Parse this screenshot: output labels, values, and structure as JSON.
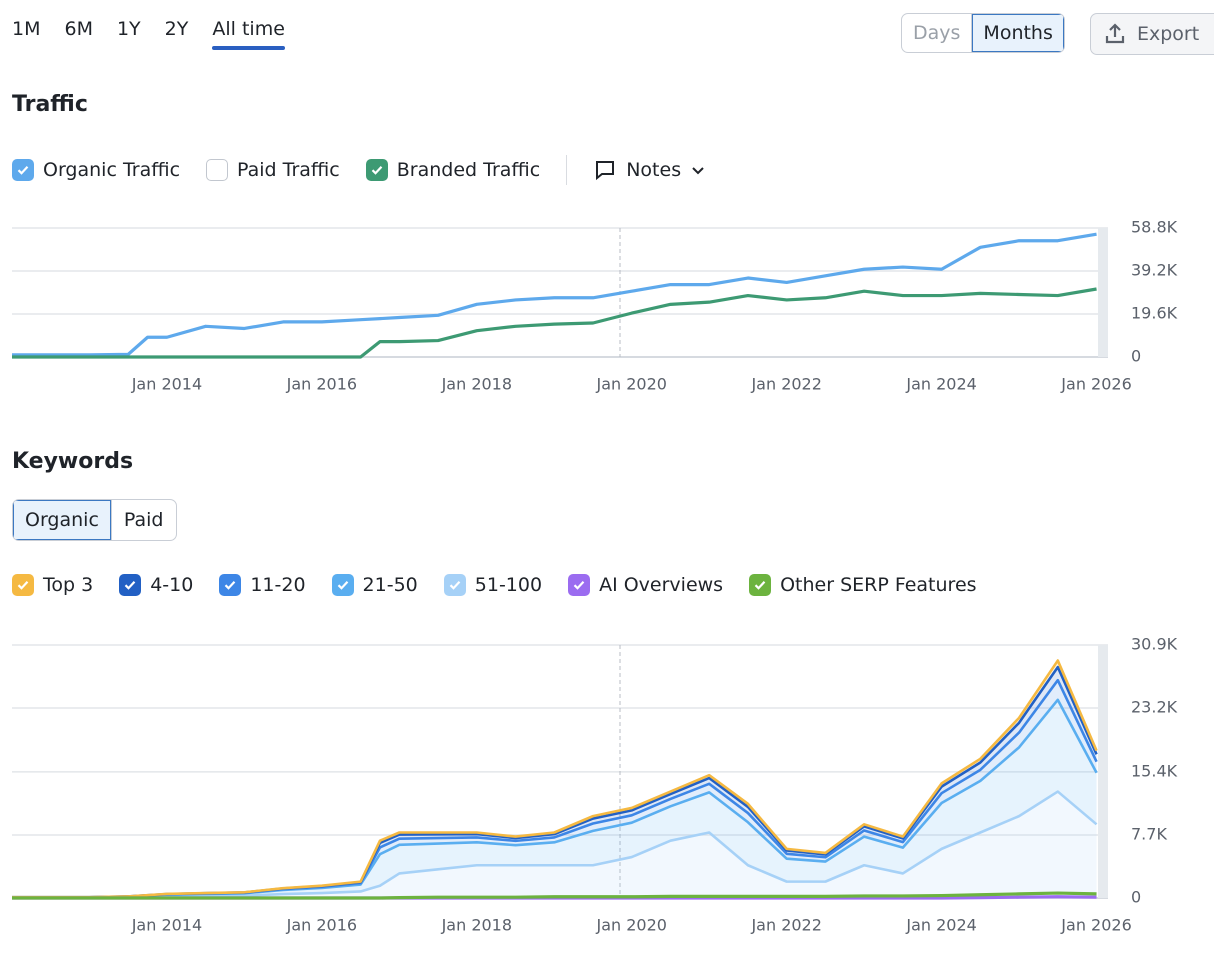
{
  "range_tabs": [
    "1M",
    "6M",
    "1Y",
    "2Y",
    "All time"
  ],
  "active_range": 4,
  "granularity": [
    "Days",
    "Months"
  ],
  "active_granularity": 1,
  "export": "Export",
  "notes": "Notes",
  "keyword_tabs": [
    "Organic",
    "Paid"
  ],
  "active_keyword_tab": 0,
  "chart_data": [
    {
      "type": "line",
      "title": "Traffic",
      "x": [
        "Jan 2012",
        "Jul 2012",
        "Jan 2013",
        "Jul 2013",
        "Oct 2013",
        "Jan 2014",
        "Jul 2014",
        "Jan 2015",
        "Jul 2015",
        "Jan 2016",
        "Jul 2016",
        "Oct 2016",
        "Jan 2017",
        "Jul 2017",
        "Jan 2018",
        "Jul 2018",
        "Jan 2019",
        "Jul 2019",
        "Jan 2020",
        "Jul 2020",
        "Jan 2021",
        "Jul 2021",
        "Jan 2022",
        "Jul 2022",
        "Jan 2023",
        "Jul 2023",
        "Jan 2024",
        "Jul 2024",
        "Jan 2025",
        "Jul 2025",
        "Jan 2026"
      ],
      "series": [
        {
          "name": "Organic Traffic",
          "color": "#5ea9ec",
          "checked": true,
          "values": [
            1000,
            1000,
            1000,
            1200,
            9000,
            9000,
            14000,
            13000,
            16000,
            16000,
            17000,
            17500,
            18000,
            19000,
            24000,
            26000,
            27000,
            27000,
            30000,
            33000,
            33000,
            36000,
            34000,
            37000,
            40000,
            41000,
            40000,
            50000,
            53000,
            53000,
            56000
          ]
        },
        {
          "name": "Paid Traffic",
          "color": "#f0a030",
          "checked": false
        },
        {
          "name": "Branded Traffic",
          "color": "#3d9a73",
          "checked": true,
          "values": [
            0,
            0,
            0,
            0,
            0,
            0,
            0,
            0,
            0,
            0,
            0,
            7000,
            7000,
            7500,
            12000,
            14000,
            15000,
            15500,
            20000,
            24000,
            25000,
            28000,
            26000,
            27000,
            30000,
            28000,
            28000,
            29000,
            28500,
            28000,
            31000
          ]
        }
      ],
      "xlim": [
        "Jan 2012",
        "Feb 2026"
      ],
      "xticks": [
        "Jan 2014",
        "Jan 2016",
        "Jan 2018",
        "Jan 2020",
        "Jan 2022",
        "Jan 2024",
        "Jan 2026"
      ],
      "ylim": [
        0,
        58800
      ],
      "yticks": [
        0,
        {
          "value": 19600,
          "label": "19.6K"
        },
        {
          "value": 39200,
          "label": "39.2K"
        },
        {
          "value": 58800,
          "label": "58.8K"
        }
      ],
      "grid": true
    },
    {
      "type": "stacked-area",
      "title": "Keywords",
      "x": [
        "Jan 2012",
        "Jul 2012",
        "Jan 2013",
        "Jul 2013",
        "Jan 2014",
        "Jul 2014",
        "Jan 2015",
        "Jul 2015",
        "Jan 2016",
        "Jul 2016",
        "Oct 2016",
        "Jan 2017",
        "Jul 2017",
        "Jan 2018",
        "Jul 2018",
        "Jan 2019",
        "Jul 2019",
        "Jan 2020",
        "Jul 2020",
        "Jan 2021",
        "Jul 2021",
        "Jan 2022",
        "Jul 2022",
        "Jan 2023",
        "Jul 2023",
        "Jan 2024",
        "Jul 2024",
        "Jan 2025",
        "Jul 2025",
        "Jan 2026"
      ],
      "series": [
        {
          "name": "Top 3",
          "color": "#f5b942",
          "type": "area",
          "checked": true,
          "values": [
            3,
            3,
            3,
            6,
            15,
            18,
            21,
            36,
            45,
            60,
            275,
            250,
            225,
            200,
            175,
            200,
            300,
            300,
            300,
            350,
            375,
            200,
            175,
            250,
            225,
            400,
            450,
            600,
            800,
            450
          ]
        },
        {
          "name": "4-10",
          "color": "#2260c4",
          "type": "area",
          "checked": true,
          "values": [
            6,
            6,
            6,
            12,
            30,
            36,
            42,
            72,
            90,
            120,
            550,
            500,
            450,
            400,
            350,
            400,
            600,
            600,
            600,
            700,
            750,
            400,
            350,
            500,
            450,
            800,
            900,
            1200,
            1600,
            900
          ]
        },
        {
          "name": "11-20",
          "color": "#3d86e6",
          "type": "area",
          "checked": true,
          "values": [
            9,
            9,
            9,
            18,
            45,
            54,
            63,
            108,
            135,
            180,
            825,
            750,
            675,
            600,
            525,
            600,
            900,
            900,
            900,
            1050,
            1125,
            600,
            525,
            750,
            675,
            1200,
            1350,
            1800,
            2400,
            1350
          ]
        },
        {
          "name": "21-50",
          "color": "#5aaef0",
          "type": "area",
          "checked": true,
          "values": [
            42,
            42,
            42,
            84,
            210,
            252,
            294,
            504,
            630,
            840,
            3850,
            3500,
            3150,
            2800,
            2450,
            2800,
            4200,
            4200,
            4200,
            4900,
            5250,
            2800,
            2450,
            3500,
            3150,
            5600,
            6300,
            8400,
            11200,
            6300
          ]
        },
        {
          "name": "51-100",
          "color": "#a6d1f7",
          "type": "area",
          "checked": true,
          "values": [
            40,
            40,
            40,
            80,
            200,
            240,
            280,
            480,
            600,
            800,
            1500,
            3000,
            3500,
            4000,
            4000,
            4000,
            4000,
            5000,
            7000,
            8000,
            4000,
            2000,
            2000,
            4000,
            3000,
            6000,
            8000,
            10000,
            13000,
            9000
          ]
        },
        {
          "name": "AI Overviews",
          "color": "#9b6cf0",
          "type": "line",
          "checked": true,
          "values": [
            0,
            0,
            0,
            0,
            0,
            0,
            0,
            0,
            0,
            0,
            0,
            0,
            0,
            0,
            0,
            0,
            0,
            0,
            0,
            0,
            0,
            0,
            0,
            0,
            0,
            0,
            50,
            100,
            150,
            100
          ]
        },
        {
          "name": "Other SERP Features",
          "color": "#6cb33f",
          "type": "line",
          "checked": true,
          "values": [
            0,
            0,
            0,
            0,
            0,
            0,
            0,
            0,
            0,
            0,
            0,
            50,
            100,
            100,
            100,
            150,
            150,
            150,
            200,
            200,
            200,
            200,
            200,
            250,
            250,
            300,
            400,
            500,
            600,
            500
          ]
        }
      ],
      "xlim": [
        "Jan 2012",
        "Feb 2026"
      ],
      "xticks": [
        "Jan 2014",
        "Jan 2016",
        "Jan 2018",
        "Jan 2020",
        "Jan 2022",
        "Jan 2024",
        "Jan 2026"
      ],
      "ylim": [
        0,
        30900
      ],
      "yticks": [
        0,
        {
          "value": 7700,
          "label": "7.7K"
        },
        {
          "value": 15400,
          "label": "15.4K"
        },
        {
          "value": 23200,
          "label": "23.2K"
        },
        {
          "value": 30900,
          "label": "30.9K"
        }
      ],
      "grid": true
    }
  ]
}
